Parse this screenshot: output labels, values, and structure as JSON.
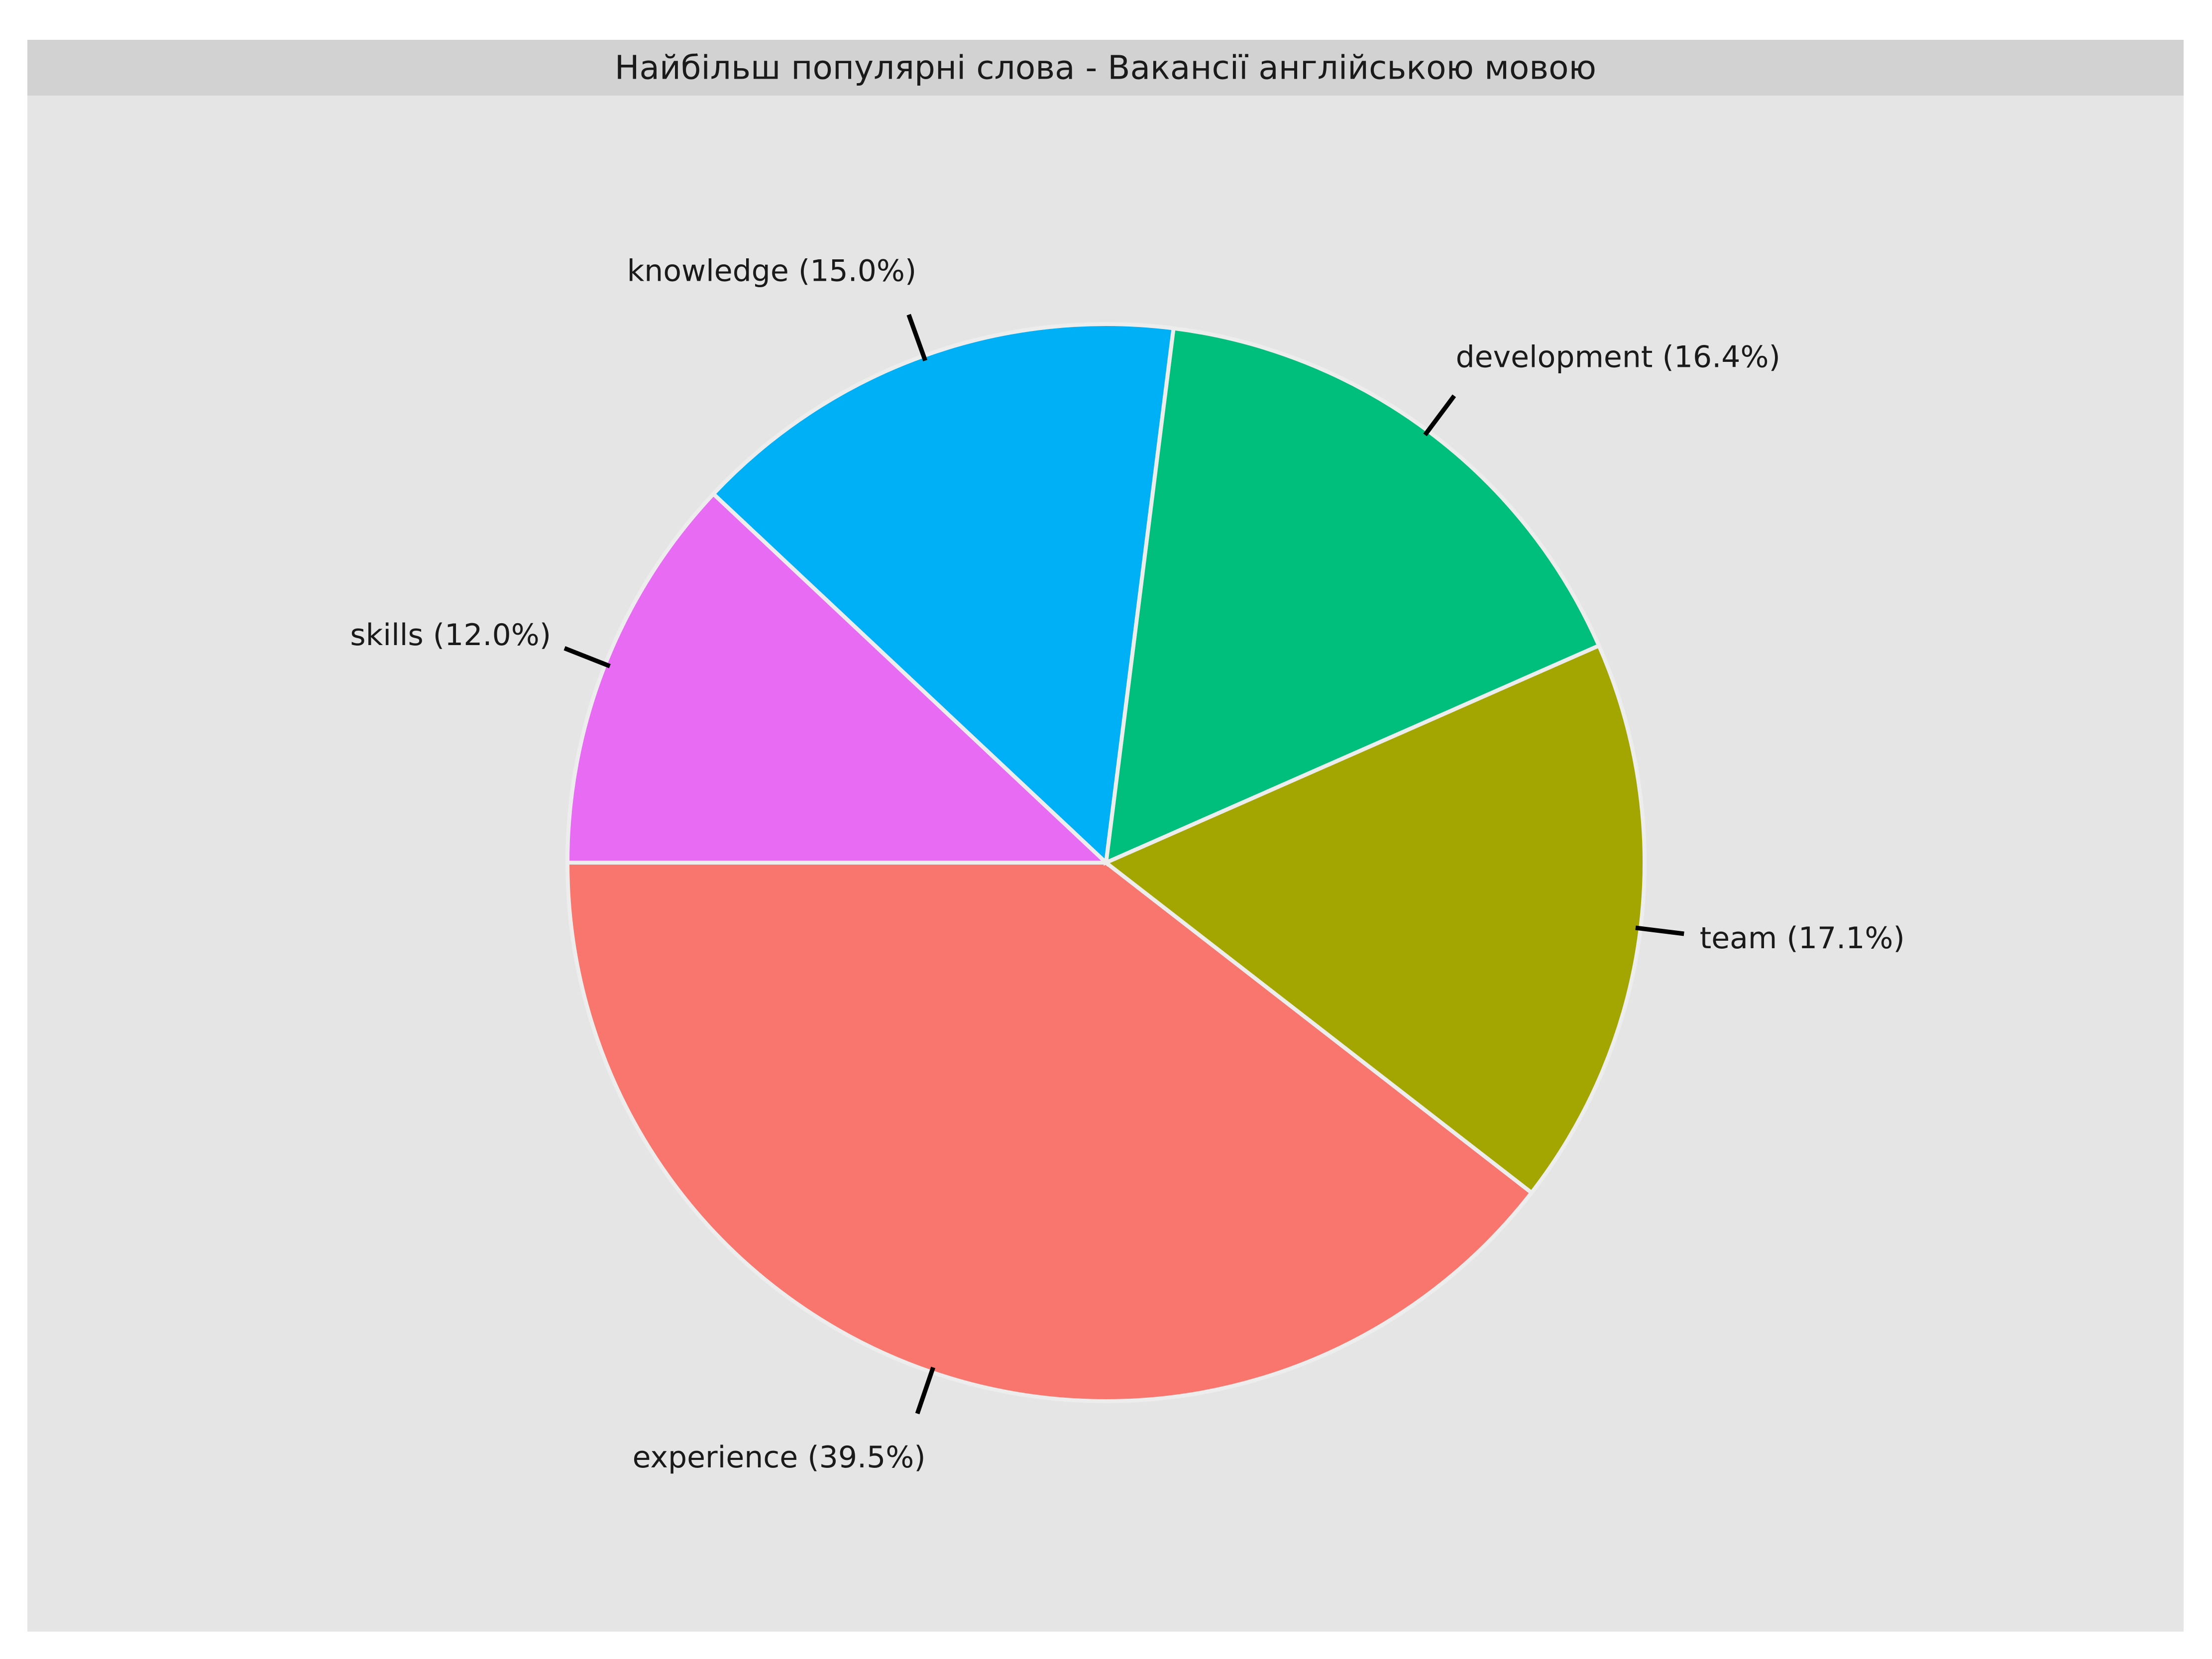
{
  "chart_data": {
    "type": "pie",
    "title": "Найбільш популярні слова - Вакансії англійською мовою",
    "slices": [
      {
        "label": "experience",
        "value": 39.5,
        "label_text": "experience (39.5%)",
        "color": "#F8766D"
      },
      {
        "label": "team",
        "value": 17.1,
        "label_text": "team (17.1%)",
        "color": "#A3A500"
      },
      {
        "label": "development",
        "value": 16.4,
        "label_text": "development (16.4%)",
        "color": "#00BF7D"
      },
      {
        "label": "knowledge",
        "value": 15.0,
        "label_text": "knowledge (15.0%)",
        "color": "#00B0F6"
      },
      {
        "label": "skills",
        "value": 12.0,
        "label_text": "skills (12.0%)",
        "color": "#E76BF3"
      }
    ],
    "start_angle": "9 o'clock",
    "direction": "counter-clockwise",
    "legend": "none",
    "panel_background": "#E5E5E5",
    "strip_background": "#D2D2D2"
  }
}
